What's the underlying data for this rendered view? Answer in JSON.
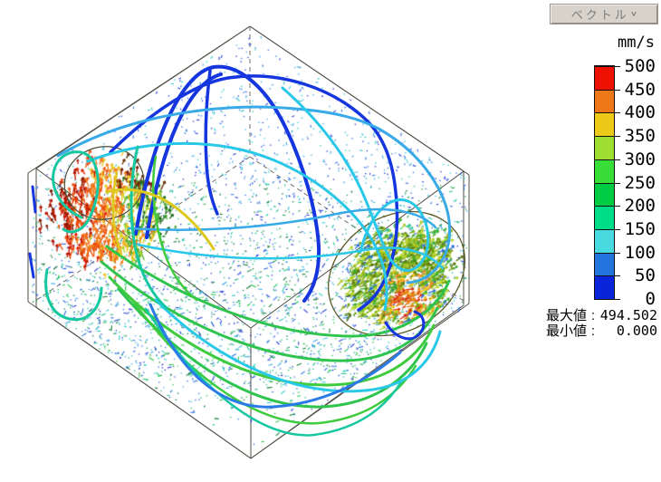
{
  "window": {
    "background": "#ffffff"
  },
  "panel": {
    "dropdown": {
      "label": "ベクトル",
      "chevron": "˅"
    },
    "unit": "mm/s",
    "stats": [
      {
        "label": "最大値",
        "sep": ":",
        "value": "494.502"
      },
      {
        "label": "最小値",
        "sep": ":",
        "value": "0.000"
      }
    ]
  },
  "legend": {
    "tick_labels": [
      "500",
      "450",
      "400",
      "350",
      "300",
      "250",
      "200",
      "150",
      "100",
      "50",
      "0"
    ],
    "segment_colors_top_to_bottom": [
      "#ee1000",
      "#ee7818",
      "#eeca18",
      "#9ede30",
      "#38dd38",
      "#00cc44",
      "#00dd88",
      "#48dade",
      "#2474de",
      "#0a24da"
    ]
  },
  "visualization": {
    "type": "3d-vector-field-with-streamlines",
    "wire_color": "#4f4f46",
    "wire_hidden_color": "#70706a",
    "stream_colors": {
      "deep_blue": "#1535de",
      "blue": "#2a7ae8",
      "light_blue": "#38aae8",
      "cyan": "#2ac8e8",
      "teal": "#16c8a0",
      "green": "#2ec44e",
      "green2": "#3ecc3e",
      "yellow": "#ddc81e",
      "outline_olive": "#5c5c28",
      "outline_dark": "#4c4c38"
    },
    "field_palettes": {
      "upper": [
        "#1b35d8",
        "#2a6ce0",
        "#3fa8e8",
        "#20c8c8"
      ],
      "mid": [
        "#1b35d8",
        "#2a6ce0",
        "#22b8d8",
        "#16c090",
        "#1f9f3f",
        "#0c6b30"
      ],
      "lower": [
        "#18b878",
        "#22c048",
        "#0c7a34",
        "#2a6ce0",
        "#1b35d8",
        "#28c8c0",
        "#3fa8e8"
      ]
    },
    "jet_left_palette": [
      "#7d1800",
      "#b81600",
      "#e32200",
      "#ee5511",
      "#ef7f1a",
      "#eec31e",
      "#a8d822",
      "#4fae2f",
      "#1d6f1d",
      "#6b3305"
    ],
    "jet_right_palette": [
      "#a8c81e",
      "#8fb31a",
      "#b8d82a",
      "#6f9f12",
      "#3fae2f",
      "#5a7a10",
      "#2cc49a",
      "#e5821a",
      "#dd3311",
      "#2a6ce0"
    ]
  }
}
